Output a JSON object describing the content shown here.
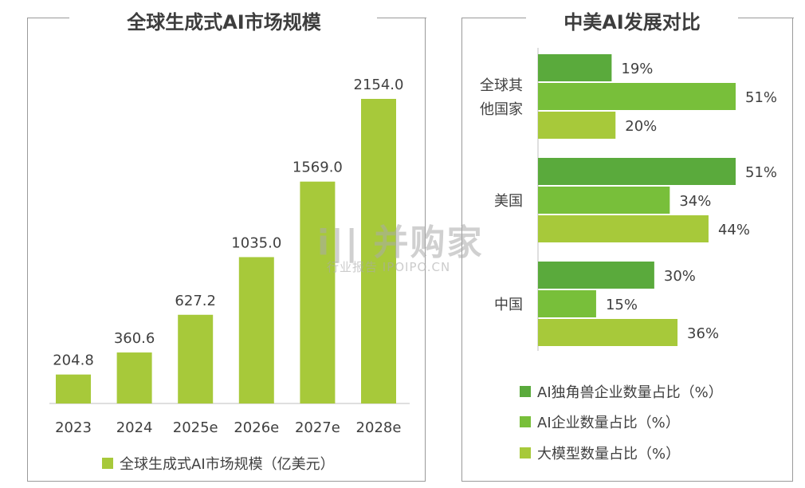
{
  "chart_data": [
    {
      "type": "bar",
      "title": "全球生成式AI市场规模",
      "categories": [
        "2023",
        "2024",
        "2025e",
        "2026e",
        "2027e",
        "2028e"
      ],
      "series": [
        {
          "name": "全球生成式AI市场规模（亿美元）",
          "values": [
            204.8,
            360.6,
            627.2,
            1035.0,
            1569.0,
            2154.0
          ],
          "labels": [
            "204.8",
            "360.6",
            "627.2",
            "1035.0",
            "1569.0",
            "2154.0"
          ]
        }
      ],
      "ylim": [
        0,
        2450
      ],
      "grid": false,
      "legend_position": "bottom",
      "colors": [
        "#a7c93a"
      ]
    },
    {
      "type": "bar",
      "orientation": "horizontal",
      "title": "中美AI发展对比",
      "categories": [
        "全球其他国家",
        "美国",
        "中国"
      ],
      "category_lines": [
        [
          "全球其",
          "他国家"
        ],
        [
          "美国"
        ],
        [
          "中国"
        ]
      ],
      "series": [
        {
          "name": "AI独角兽企业数量占比（%）",
          "values": [
            19,
            51,
            30
          ],
          "labels": [
            "19%",
            "51%",
            "30%"
          ]
        },
        {
          "name": "AI企业数量占比（%）",
          "values": [
            51,
            34,
            15
          ],
          "labels": [
            "51%",
            "34%",
            "15%"
          ]
        },
        {
          "name": "大模型数量占比（%）",
          "values": [
            20,
            44,
            36
          ],
          "labels": [
            "20%",
            "44%",
            "36%"
          ]
        }
      ],
      "xlim": [
        0,
        51
      ],
      "grid": false,
      "legend_position": "bottom",
      "colors": [
        "#5aaa3c",
        "#78bf3a",
        "#a7c93a"
      ]
    }
  ],
  "watermark": {
    "main": "i|| 并购家",
    "sub": "行业报告 IPOIPO.CN"
  }
}
